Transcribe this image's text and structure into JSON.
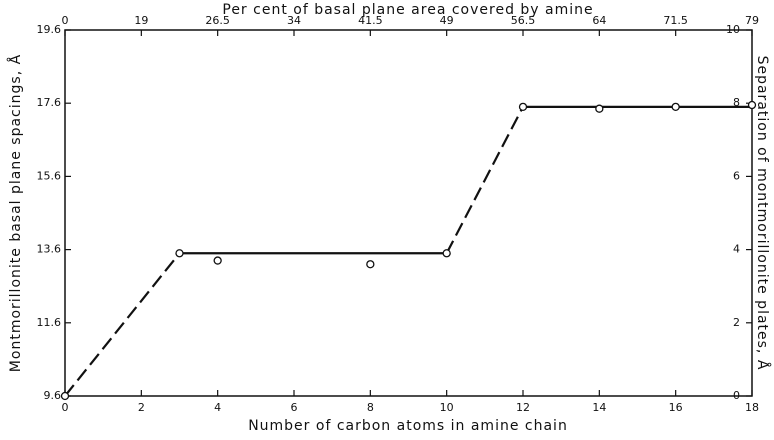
{
  "chart_data": {
    "type": "scatter",
    "title": "Per cent of basal plane area covered by amine",
    "xlabel": "Number of carbon atoms in amine chain",
    "ylabel": "Montmorillonite basal plane spacings, Å",
    "y2label": "Separation of montmorillonite plates, Å",
    "x": [
      0,
      3,
      4,
      8,
      10,
      12,
      14,
      16,
      18
    ],
    "values": [
      9.6,
      13.5,
      13.3,
      13.2,
      13.5,
      17.5,
      17.45,
      17.5,
      17.55
    ],
    "fit_segments": [
      {
        "x": [
          0,
          3
        ],
        "values": [
          9.6,
          13.5
        ],
        "dashed": true
      },
      {
        "x": [
          3,
          10
        ],
        "values": [
          13.5,
          13.5
        ],
        "dashed": false
      },
      {
        "x": [
          10,
          12
        ],
        "values": [
          13.5,
          17.5
        ],
        "dashed": true
      },
      {
        "x": [
          12,
          18
        ],
        "values": [
          17.5,
          17.5
        ],
        "dashed": false
      }
    ],
    "xlim": [
      0,
      18
    ],
    "xticks": [
      0,
      2,
      4,
      6,
      8,
      10,
      12,
      14,
      16,
      18
    ],
    "x2ticks": [
      0,
      19,
      26.5,
      34,
      41.5,
      49,
      56.5,
      64,
      71.5,
      79
    ],
    "ylim": [
      9.6,
      19.6
    ],
    "yticks": [
      9.6,
      11.6,
      13.6,
      15.6,
      17.6,
      19.6
    ],
    "y2lim": [
      0,
      10
    ],
    "y2ticks": [
      0,
      2,
      4,
      6,
      8,
      10
    ],
    "color": "#111111"
  }
}
